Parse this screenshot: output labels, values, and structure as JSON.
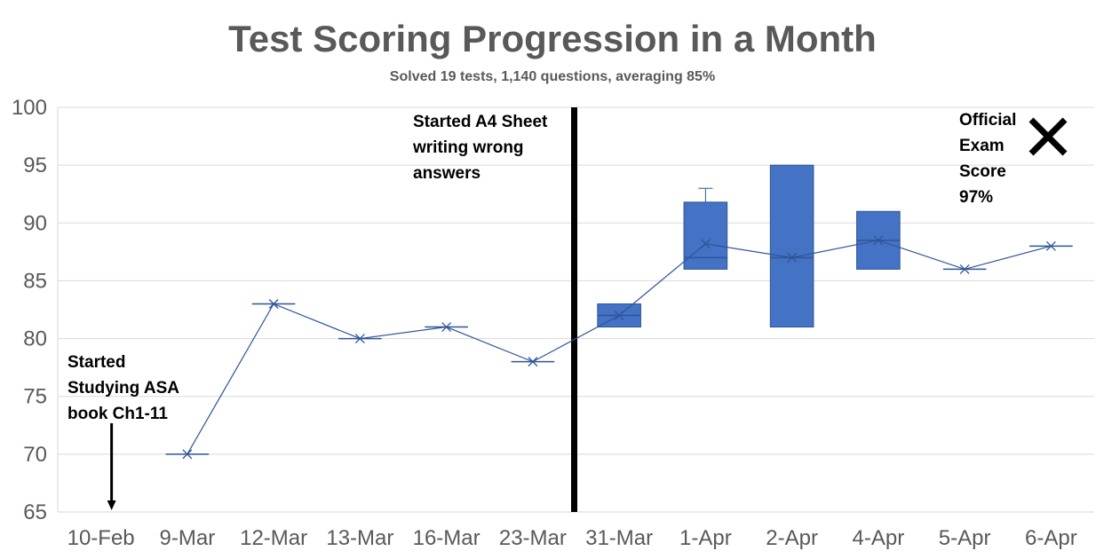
{
  "chart_data": {
    "type": "box",
    "title": "Test Scoring Progression in a Month",
    "subtitle": "Solved 19 tests, 1,140 questions, averaging 85%",
    "xlabel": "",
    "ylabel": "",
    "ylim": [
      65,
      100
    ],
    "yticks": [
      65,
      70,
      75,
      80,
      85,
      90,
      95,
      100
    ],
    "grid": true,
    "categories": [
      "10-Feb",
      "9-Mar",
      "12-Mar",
      "13-Mar",
      "16-Mar",
      "23-Mar",
      "31-Mar",
      "1-Apr",
      "2-Apr",
      "4-Apr",
      "5-Apr",
      "6-Apr"
    ],
    "boxes": [
      null,
      {
        "min": 70,
        "q1": 70,
        "median": 70,
        "q3": 70,
        "max": 70,
        "mean": 70
      },
      {
        "min": 83,
        "q1": 83,
        "median": 83,
        "q3": 83,
        "max": 83,
        "mean": 83
      },
      {
        "min": 80,
        "q1": 80,
        "median": 80,
        "q3": 80,
        "max": 80,
        "mean": 80
      },
      {
        "min": 81,
        "q1": 81,
        "median": 81,
        "q3": 81,
        "max": 81,
        "mean": 81
      },
      {
        "min": 78,
        "q1": 78,
        "median": 78,
        "q3": 78,
        "max": 78,
        "mean": 78
      },
      {
        "min": 81,
        "q1": 81,
        "median": 82,
        "q3": 83,
        "max": 83,
        "mean": 82
      },
      {
        "min": 86,
        "q1": 86,
        "median": 87,
        "q3": 91.8,
        "max": 93,
        "mean": 88.2
      },
      {
        "min": 81,
        "q1": 81,
        "median": 87,
        "q3": 95,
        "max": 95,
        "mean": 87
      },
      {
        "min": 86,
        "q1": 86,
        "median": 88.5,
        "q3": 91,
        "max": 91,
        "mean": 88.5
      },
      {
        "min": 86,
        "q1": 86,
        "median": 86,
        "q3": 86,
        "max": 86,
        "mean": 86
      },
      {
        "min": 88,
        "q1": 88,
        "median": 88,
        "q3": 88,
        "max": 88,
        "mean": 88
      }
    ],
    "colors": {
      "box_fill": "#4472c4",
      "box_stroke": "#2f5597",
      "mean_line": "#2f5597",
      "divider": "#000000"
    },
    "divider_between": [
      "23-Mar",
      "31-Mar"
    ],
    "annotations": {
      "start_note": {
        "lines": [
          "Started",
          "Studying ASA",
          "book Ch1-11"
        ],
        "category": "10-Feb"
      },
      "divider_note": {
        "lines": [
          "Started A4 Sheet",
          "writing wrong",
          "answers"
        ]
      },
      "exam_note": {
        "lines": [
          "Official",
          "Exam",
          "Score",
          "97%"
        ],
        "value": 97,
        "marker": "x"
      }
    }
  }
}
